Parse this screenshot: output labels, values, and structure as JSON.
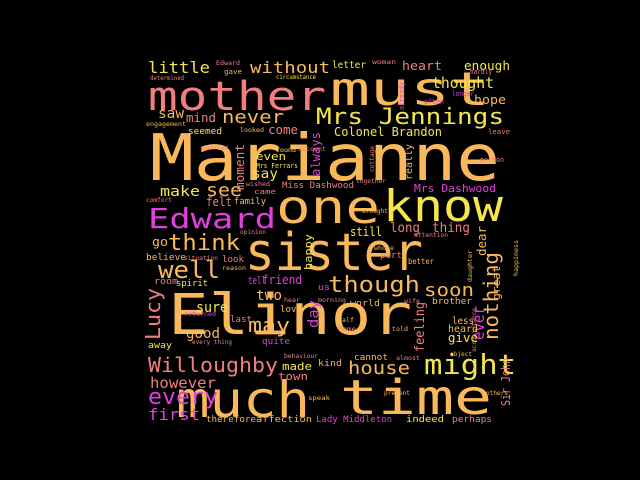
{
  "palette": {
    "background": "#000000",
    "light_orange": "#f9b95a",
    "coral": "#f07f7e",
    "yellow": "#f6e64a",
    "magenta": "#e13fe0",
    "pink": "#e9669e"
  },
  "words": [
    {
      "text": "Marianne",
      "color": "#f9b95a"
    },
    {
      "text": "Elinor",
      "color": "#f9b95a"
    },
    {
      "text": "sister",
      "color": "#f9b95a"
    },
    {
      "text": "much",
      "color": "#f9b95a"
    },
    {
      "text": "time",
      "color": "#f9b95a"
    },
    {
      "text": "one",
      "color": "#f9b95a"
    },
    {
      "text": "know",
      "color": "#f6e64a"
    },
    {
      "text": "must",
      "color": "#f9b95a"
    },
    {
      "text": "mother",
      "color": "#f07f7e"
    },
    {
      "text": "Edward",
      "color": "#e13fe0"
    },
    {
      "text": "Mrs Jennings",
      "color": "#f6e64a"
    },
    {
      "text": "might",
      "color": "#f6e64a"
    },
    {
      "text": "think",
      "color": "#f9b95a"
    },
    {
      "text": "well",
      "color": "#f9b95a"
    },
    {
      "text": "though",
      "color": "#f9b95a"
    },
    {
      "text": "Willoughby",
      "color": "#f07f7e"
    },
    {
      "text": "every",
      "color": "#e13fe0"
    },
    {
      "text": "never",
      "color": "#f9b95a"
    },
    {
      "text": "little",
      "color": "#f6e64a"
    },
    {
      "text": "without",
      "color": "#f9b95a"
    },
    {
      "text": "house",
      "color": "#f9b95a"
    },
    {
      "text": "may",
      "color": "#f9b95a"
    },
    {
      "text": "Lucy",
      "color": "#f07f7e"
    },
    {
      "text": "nothing",
      "color": "#f9b95a"
    },
    {
      "text": "however",
      "color": "#f07f7e"
    },
    {
      "text": "first",
      "color": "#e13fe0"
    },
    {
      "text": "Colonel Brandon",
      "color": "#f6e64a"
    },
    {
      "text": "thought",
      "color": "#f6e64a"
    },
    {
      "text": "soon",
      "color": "#f9b95a"
    },
    {
      "text": "see",
      "color": "#f9b95a"
    },
    {
      "text": "make",
      "color": "#f6e64a"
    },
    {
      "text": "heart",
      "color": "#f07f7e"
    },
    {
      "text": "enough",
      "color": "#f6e64a"
    },
    {
      "text": "hope",
      "color": "#f9b95a"
    },
    {
      "text": "saw",
      "color": "#f9b95a"
    },
    {
      "text": "mind",
      "color": "#f07f7e"
    },
    {
      "text": "come",
      "color": "#f07f7e"
    },
    {
      "text": "letter",
      "color": "#f6e64a"
    },
    {
      "text": "Mrs Dashwood",
      "color": "#e13fe0"
    },
    {
      "text": "two",
      "color": "#f9b95a"
    },
    {
      "text": "good",
      "color": "#f9b95a"
    },
    {
      "text": "sure",
      "color": "#f6e64a"
    },
    {
      "text": "ever",
      "color": "#e13fe0"
    },
    {
      "text": "great",
      "color": "#f9b95a"
    },
    {
      "text": "Sir John",
      "color": "#f07f7e"
    },
    {
      "text": "long",
      "color": "#f07f7e"
    },
    {
      "text": "thing",
      "color": "#f07f7e"
    },
    {
      "text": "feeling",
      "color": "#f07f7e"
    },
    {
      "text": "give",
      "color": "#f6e64a"
    },
    {
      "text": "day",
      "color": "#e13fe0"
    },
    {
      "text": "made",
      "color": "#f6e64a"
    },
    {
      "text": "town",
      "color": "#f07f7e"
    },
    {
      "text": "moment",
      "color": "#f07f7e"
    },
    {
      "text": "even",
      "color": "#f6e64a"
    },
    {
      "text": "say",
      "color": "#f6e64a"
    },
    {
      "text": "always",
      "color": "#e13fe0"
    },
    {
      "text": "felt",
      "color": "#f07f7e"
    },
    {
      "text": "family",
      "color": "#f9b95a"
    },
    {
      "text": "go",
      "color": "#f9b95a"
    },
    {
      "text": "still",
      "color": "#f6e64a"
    },
    {
      "text": "friend",
      "color": "#e13fe0"
    },
    {
      "text": "tell",
      "color": "#e13fe0"
    },
    {
      "text": "Miss Dashwood",
      "color": "#f07f7e"
    },
    {
      "text": "seemed",
      "color": "#f6e64a"
    },
    {
      "text": "dear",
      "color": "#f9b95a"
    },
    {
      "text": "really",
      "color": "#f9b95a"
    },
    {
      "text": "happy",
      "color": "#f6e64a"
    },
    {
      "text": "affection",
      "color": "#f9b95a"
    },
    {
      "text": "Lady Middleton",
      "color": "#e13fe0"
    },
    {
      "text": "indeed",
      "color": "#f6e64a"
    },
    {
      "text": "perhaps",
      "color": "#f07f7e"
    },
    {
      "text": "therefore",
      "color": "#f9b95a"
    },
    {
      "text": "heard",
      "color": "#f9b95a"
    },
    {
      "text": "less",
      "color": "#f9b95a"
    },
    {
      "text": "brother",
      "color": "#f9b95a"
    },
    {
      "text": "world",
      "color": "#f9b95a"
    },
    {
      "text": "kind",
      "color": "#f9b95a"
    },
    {
      "text": "cannot",
      "color": "#f9b95a"
    },
    {
      "text": "last",
      "color": "#f07f7e"
    },
    {
      "text": "quite",
      "color": "#e13fe0"
    },
    {
      "text": "love",
      "color": "#f9b95a"
    },
    {
      "text": "room",
      "color": "#f07f7e"
    },
    {
      "text": "spirit",
      "color": "#f6e64a"
    },
    {
      "text": "believe",
      "color": "#f9b95a"
    },
    {
      "text": "look",
      "color": "#f07f7e"
    },
    {
      "text": "away",
      "color": "#f6e64a"
    },
    {
      "text": "us",
      "color": "#e13fe0"
    },
    {
      "text": "part",
      "color": "#f07f7e"
    },
    {
      "text": "better",
      "color": "#f9b95a"
    },
    {
      "text": "leave",
      "color": "#f07f7e"
    },
    {
      "text": "person",
      "color": "#f07f7e"
    },
    {
      "text": "already",
      "color": "#e13fe0"
    },
    {
      "text": "often",
      "color": "#e13fe0"
    },
    {
      "text": "longer",
      "color": "#e13fe0"
    },
    {
      "text": "hardly",
      "color": "#f07f7e"
    },
    {
      "text": "woman",
      "color": "#f07f7e"
    },
    {
      "text": "gave",
      "color": "#f9b95a"
    },
    {
      "text": "circumstance",
      "color": "#f6e64a"
    },
    {
      "text": "Edward",
      "color": "#f07f7e"
    },
    {
      "text": "determined",
      "color": "#f07f7e"
    },
    {
      "text": "engagement",
      "color": "#f9b95a"
    },
    {
      "text": "married",
      "color": "#f07f7e"
    },
    {
      "text": "looked",
      "color": "#f9b95a"
    },
    {
      "text": "account",
      "color": "#f07f7e"
    },
    {
      "text": "found",
      "color": "#f6e64a"
    },
    {
      "text": "Mrs Ferrars",
      "color": "#f6e64a"
    },
    {
      "text": "came",
      "color": "#f07f7e"
    },
    {
      "text": "wished",
      "color": "#f07f7e"
    },
    {
      "text": "together",
      "color": "#f07f7e"
    },
    {
      "text": "cottage",
      "color": "#f07f7e"
    },
    {
      "text": "brought",
      "color": "#f9b95a"
    },
    {
      "text": "opinion",
      "color": "#f07f7e"
    },
    {
      "text": "whose",
      "color": "#f9b95a"
    },
    {
      "text": "attention",
      "color": "#f07f7e"
    },
    {
      "text": "daughter",
      "color": "#f9b95a"
    },
    {
      "text": "happiness",
      "color": "#f9b95a"
    },
    {
      "text": "situation",
      "color": "#f07f7e"
    },
    {
      "text": "reason",
      "color": "#f9b95a"
    },
    {
      "text": "returned",
      "color": "#e13fe0"
    },
    {
      "text": "hear",
      "color": "#f07f7e"
    },
    {
      "text": "morning",
      "color": "#f07f7e"
    },
    {
      "text": "wife",
      "color": "#f07f7e"
    },
    {
      "text": "half",
      "color": "#f9b95a"
    },
    {
      "text": "home",
      "color": "#f07f7e"
    },
    {
      "text": "told",
      "color": "#f9b95a"
    },
    {
      "text": "object",
      "color": "#f9b95a"
    },
    {
      "text": "behaviour",
      "color": "#f07f7e"
    },
    {
      "text": "almost",
      "color": "#f07f7e"
    },
    {
      "text": "speak",
      "color": "#f9b95a"
    },
    {
      "text": "present",
      "color": "#f9b95a"
    },
    {
      "text": "others",
      "color": "#f9b95a"
    },
    {
      "text": "comfort",
      "color": "#f07f7e"
    },
    {
      "text": "every thing",
      "color": "#f07f7e"
    },
    {
      "text": "acquaintance",
      "color": "#f07f7e"
    }
  ]
}
